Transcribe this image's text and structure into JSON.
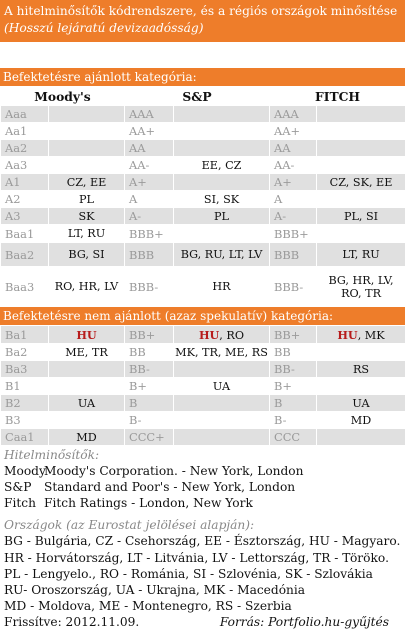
{
  "header": {
    "title": "A hitelminősítők kódrendszere, és a régiós országok minősítése",
    "subtitle": "(Hosszú lejáratú devizaadósság)"
  },
  "investment_grade": {
    "title": "Befektetésre ajánlott kategória:",
    "columns": [
      "Moody's",
      "S&P",
      "FITCH"
    ],
    "rows": [
      {
        "m": "Aaa",
        "mc": "",
        "s": "AAA",
        "sc": "",
        "f": "AAA",
        "fc": ""
      },
      {
        "m": "Aa1",
        "mc": "",
        "s": "AA+",
        "sc": "",
        "f": "AA+",
        "fc": ""
      },
      {
        "m": "Aa2",
        "mc": "",
        "s": "AA",
        "sc": "",
        "f": "AA",
        "fc": ""
      },
      {
        "m": "Aa3",
        "mc": "",
        "s": "AA-",
        "sc": "EE, CZ",
        "f": "AA-",
        "fc": ""
      },
      {
        "m": "A1",
        "mc": "CZ, EE",
        "s": "A+",
        "sc": "",
        "f": "A+",
        "fc": "CZ, SK, EE"
      },
      {
        "m": "A2",
        "mc": "PL",
        "s": "A",
        "sc": "SI, SK",
        "f": "A",
        "fc": ""
      },
      {
        "m": "A3",
        "mc": "SK",
        "s": "A-",
        "sc": "PL",
        "f": "A-",
        "fc": "PL, SI"
      },
      {
        "m": "Baa1",
        "mc": "LT, RU",
        "s": "BBB+",
        "sc": "",
        "f": "BBB+",
        "fc": ""
      },
      {
        "m": "Baa2",
        "mc": "BG, SI",
        "s": "BBB",
        "sc": "BG, RU, LT, LV",
        "f": "BBB",
        "fc": "LT, RU"
      },
      {
        "m": "Baa3",
        "mc": "RO, HR, LV",
        "s": "BBB-",
        "sc": "HR",
        "f": "BBB-",
        "fc": "BG, HR, LV, RO, TR"
      }
    ]
  },
  "speculative_grade": {
    "title": "Befektetésre nem ajánlott (azaz spekulatív) kategória:",
    "hu": "HU",
    "rows": [
      {
        "m": "Ba1",
        "mc": "",
        "s": "BB+",
        "sc_rest": ", RO",
        "f": "BB+",
        "fc_rest": ", MK"
      },
      {
        "m": "Ba2",
        "mc": "ME, TR",
        "s": "BB",
        "sc": "MK, TR, ME, RS",
        "f": "BB",
        "fc": ""
      },
      {
        "m": "Ba3",
        "mc": "",
        "s": "BB-",
        "sc": "",
        "f": "BB-",
        "fc": "RS"
      },
      {
        "m": "B1",
        "mc": "",
        "s": "B+",
        "sc": "UA",
        "f": "B+",
        "fc": ""
      },
      {
        "m": "B2",
        "mc": "UA",
        "s": "B",
        "sc": "",
        "f": "B",
        "fc": "UA"
      },
      {
        "m": "B3",
        "mc": "",
        "s": "B-",
        "sc": "",
        "f": "B-",
        "fc": "MD"
      },
      {
        "m": "Caa1",
        "mc": "MD",
        "s": "CCC+",
        "sc": "",
        "f": "CCC",
        "fc": ""
      }
    ]
  },
  "agencies": {
    "title": "Hitelminősítők:",
    "items": [
      {
        "abbr": "Moody",
        "name": "Moody's Corporation. - New York, London"
      },
      {
        "abbr": "S&P",
        "name": "Standard and Poor's  - New York, London"
      },
      {
        "abbr": "Fitch",
        "name": "Fitch Ratings - London, New York"
      }
    ]
  },
  "countries": {
    "title": "Országok (az Eurostat jelölései alapján):",
    "lines": [
      "BG - Bulgária, CZ - Csehország, EE - Észtország, HU - Magyaro.",
      "HR - Horvátország, LT - Litvánia, LV - Lettország, TR - Törökо.",
      "PL - Lengyelo., RO - Románia, SI - Szlovénia, SK - Szlovákia",
      "RU- Oroszország, UA - Ukrajna, MK - Macedónia",
      "MD - Moldova, ME - Montenegro, RS - Szerbia"
    ]
  },
  "footer": {
    "date": "Frissítve: 2012.11.09.",
    "source": "Forrás: Portfolio.hu-gyűjtés"
  }
}
